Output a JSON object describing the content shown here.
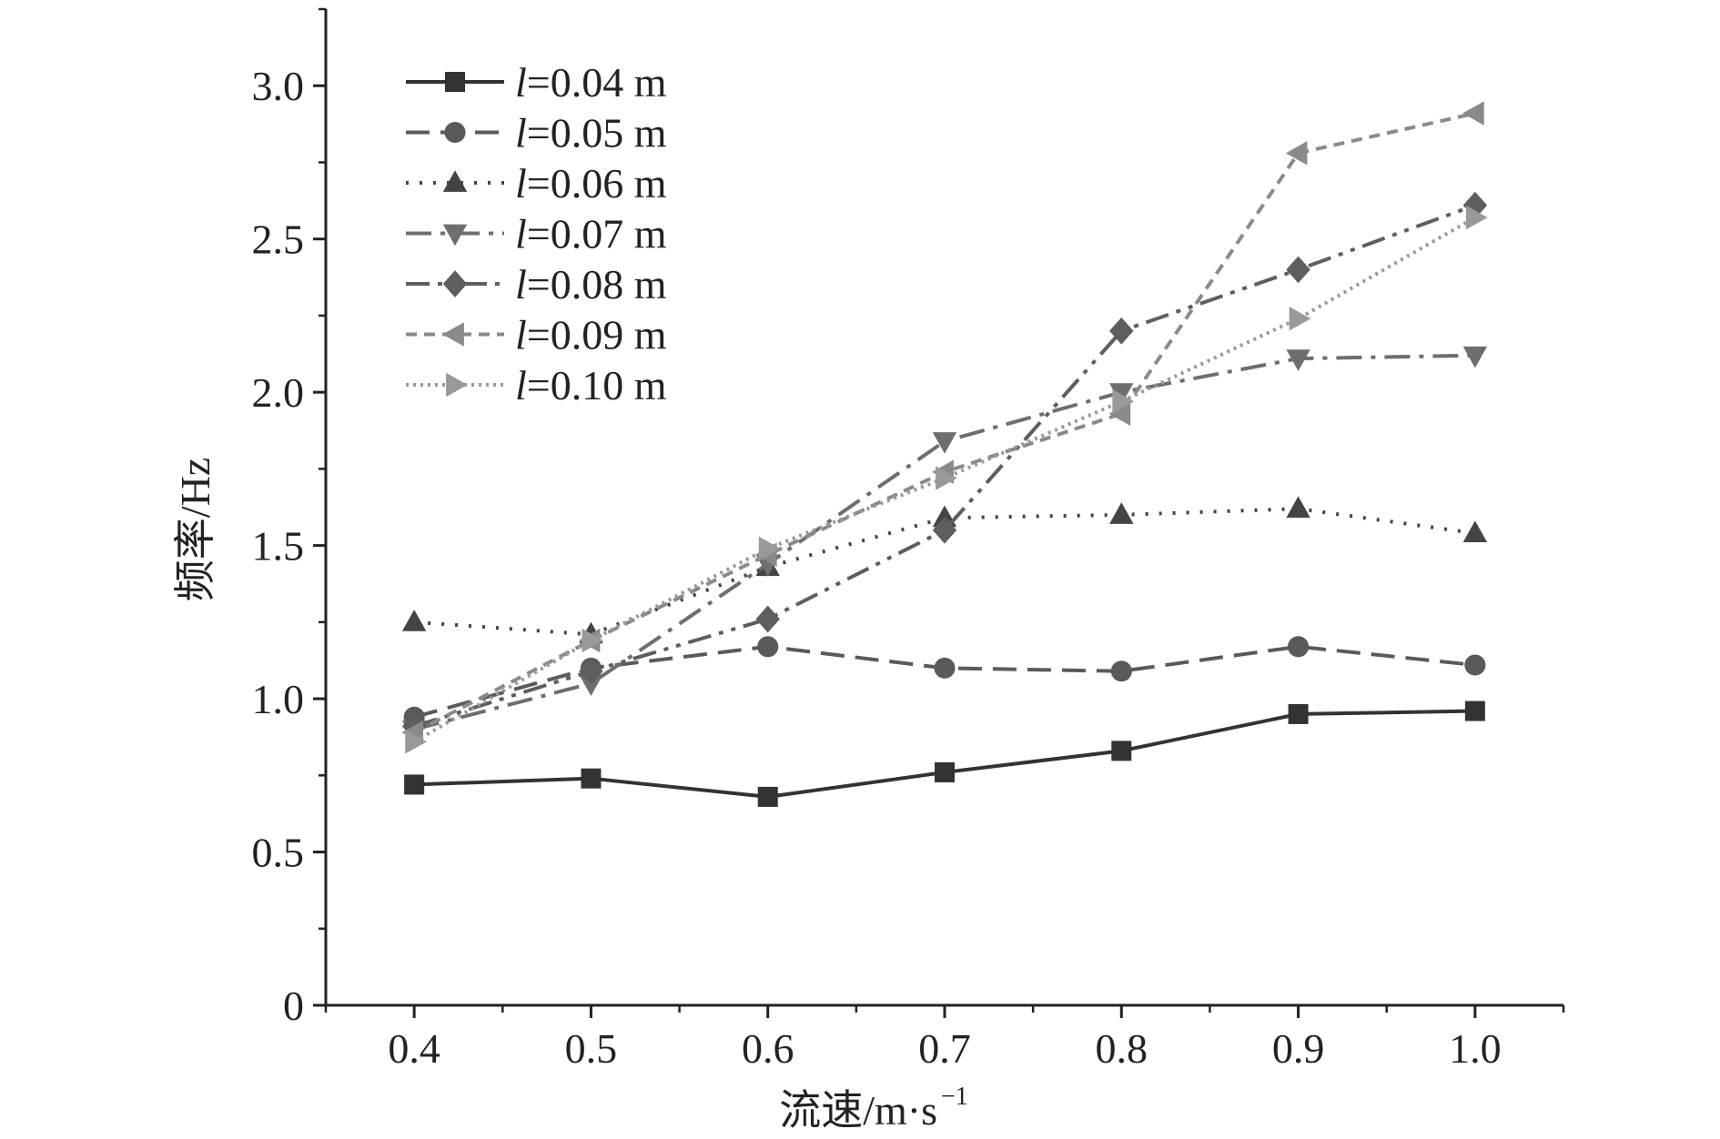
{
  "chart_data": {
    "type": "line",
    "title": "",
    "xlabel": "流速/m·s",
    "xlabel_sup": "−1",
    "ylabel": "频率/Hz",
    "x": [
      0.4,
      0.5,
      0.6,
      0.7,
      0.8,
      0.9,
      1.0
    ],
    "xlim": [
      0.35,
      1.05
    ],
    "ylim": [
      0,
      3.25
    ],
    "xticks": [
      0.4,
      0.5,
      0.6,
      0.7,
      0.8,
      0.9,
      1.0
    ],
    "xtick_labels": [
      "0.4",
      "0.5",
      "0.6",
      "0.7",
      "0.8",
      "0.9",
      "1.0"
    ],
    "yticks": [
      0,
      0.5,
      1.0,
      1.5,
      2.0,
      2.5,
      3.0
    ],
    "ytick_labels": [
      "0",
      "0.5",
      "1.0",
      "1.5",
      "2.0",
      "2.5",
      "3.0"
    ],
    "legend_position": "top-left",
    "grid": false,
    "series": [
      {
        "name": "l=0.04 m",
        "italic_prefix": "l",
        "label_rest": "=0.04 m",
        "marker": "square",
        "dash": "solid",
        "color": "#333333",
        "values": [
          0.72,
          0.74,
          0.68,
          0.76,
          0.83,
          0.95,
          0.96
        ]
      },
      {
        "name": "l=0.05 m",
        "italic_prefix": "l",
        "label_rest": "=0.05 m",
        "marker": "circle",
        "dash": "dash",
        "color": "#5a5a5a",
        "values": [
          0.94,
          1.1,
          1.17,
          1.1,
          1.09,
          1.17,
          1.11
        ]
      },
      {
        "name": "l=0.06 m",
        "italic_prefix": "l",
        "label_rest": "=0.06 m",
        "marker": "triangle-up",
        "dash": "dot",
        "color": "#444444",
        "values": [
          1.25,
          1.21,
          1.43,
          1.59,
          1.6,
          1.62,
          1.54
        ]
      },
      {
        "name": "l=0.07 m",
        "italic_prefix": "l",
        "label_rest": "=0.07 m",
        "marker": "triangle-down",
        "dash": "dashdot",
        "color": "#6e6e6e",
        "values": [
          0.9,
          1.05,
          1.44,
          1.84,
          2.0,
          2.11,
          2.12
        ]
      },
      {
        "name": "l=0.08 m",
        "italic_prefix": "l",
        "label_rest": "=0.08 m",
        "marker": "diamond",
        "dash": "dashdotdot",
        "color": "#5e5e5e",
        "values": [
          0.91,
          1.09,
          1.26,
          1.55,
          2.2,
          2.4,
          2.61
        ]
      },
      {
        "name": "l=0.09 m",
        "italic_prefix": "l",
        "label_rest": "=0.09 m",
        "marker": "triangle-left",
        "dash": "shortdash",
        "color": "#8a8a8a",
        "values": [
          0.89,
          1.19,
          1.47,
          1.74,
          1.93,
          2.78,
          2.91
        ]
      },
      {
        "name": "l=0.10 m",
        "italic_prefix": "l",
        "label_rest": "=0.10 m",
        "marker": "triangle-right",
        "dash": "shortdot",
        "color": "#999999",
        "values": [
          0.86,
          1.19,
          1.49,
          1.72,
          1.97,
          2.24,
          2.57
        ]
      }
    ]
  }
}
